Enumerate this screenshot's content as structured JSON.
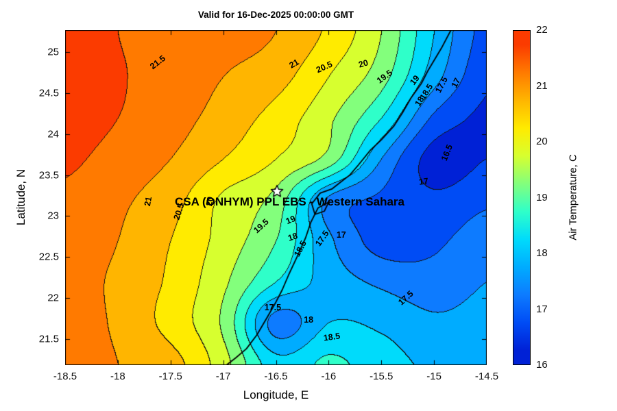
{
  "annotation": {
    "text": "CSA (ONHYM) PPL EBS  - Western Sahara",
    "lon": -16.37,
    "lat": 23.17,
    "star_lon": -16.49,
    "star_lat": 23.3,
    "star_marker": "white-pentagram"
  },
  "axes": {
    "xticks": [
      "-18.5",
      "-18",
      "-17.5",
      "-17",
      "-16.5",
      "-16",
      "-15.5",
      "-15",
      "-14.5"
    ],
    "yticks": [
      "21.5",
      "22",
      "22.5",
      "23",
      "23.5",
      "24",
      "24.5",
      "25"
    ]
  },
  "colorbar": {
    "label": "Air Temperature, C",
    "min": 16,
    "max": 22,
    "ticks": [
      "16",
      "17",
      "18",
      "19",
      "20",
      "21",
      "22"
    ]
  },
  "chart_data": {
    "type": "heatmap",
    "subtype": "filled-contour-map",
    "title": "Valid for 16-Dec-2025 00:00:00 GMT",
    "xlabel": "Longitude, E",
    "ylabel": "Latitude, N",
    "lon_range": [
      -18.5,
      -14.5
    ],
    "lat_range": [
      21.18,
      25.27
    ],
    "contour_levels": [
      16,
      16.5,
      17,
      17.5,
      18,
      18.5,
      19,
      19.5,
      20,
      20.5,
      21,
      21.5,
      22
    ],
    "band_colors": [
      "#0021D6",
      "#004CF5",
      "#0D7BFF",
      "#00ACFF",
      "#00DBFB",
      "#2FFFC9",
      "#83FF7C",
      "#D7FF2F",
      "#FFEB00",
      "#FFB500",
      "#FF7A00",
      "#FB3B00"
    ],
    "grid": {
      "lons": [
        -18.5,
        -18.0,
        -17.5,
        -17.0,
        -16.5,
        -16.0,
        -15.5,
        -15.0,
        -14.5
      ],
      "lats": [
        21.2,
        21.7,
        22.2,
        22.7,
        23.2,
        23.7,
        24.2,
        24.7,
        25.26
      ],
      "temps_c": [
        [
          21.4,
          21.0,
          20.7,
          19.7,
          18.2,
          18.6,
          18.2,
          17.9,
          17.8
        ],
        [
          21.3,
          20.9,
          20.3,
          19.4,
          17.3,
          18.0,
          17.9,
          17.6,
          17.7
        ],
        [
          21.2,
          20.9,
          20.4,
          19.6,
          18.5,
          17.8,
          17.4,
          17.2,
          17.5
        ],
        [
          21.3,
          21.0,
          20.5,
          19.8,
          19.0,
          17.6,
          16.8,
          16.9,
          17.3
        ],
        [
          21.4,
          21.1,
          20.7,
          19.9,
          19.3,
          17.4,
          16.9,
          16.6,
          16.9
        ],
        [
          21.6,
          21.3,
          21.0,
          20.5,
          20.0,
          19.3,
          17.5,
          16.3,
          16.5
        ],
        [
          21.8,
          21.5,
          21.2,
          20.8,
          20.3,
          19.6,
          18.5,
          16.9,
          16.4
        ],
        [
          21.9,
          21.55,
          21.3,
          21.0,
          20.7,
          20.0,
          19.2,
          17.7,
          16.6
        ],
        [
          21.9,
          21.5,
          21.35,
          21.2,
          21.0,
          20.4,
          19.5,
          18.0,
          16.8
        ]
      ]
    },
    "contour_labels": [
      {
        "t": "21.5",
        "lon": -17.62,
        "lat": 24.88,
        "rot": -38
      },
      {
        "t": "21",
        "lon": -16.33,
        "lat": 24.86,
        "rot": -30
      },
      {
        "t": "20.5",
        "lon": -16.04,
        "lat": 24.82,
        "rot": -24
      },
      {
        "t": "20",
        "lon": -15.67,
        "lat": 24.86,
        "rot": -16
      },
      {
        "t": "19.5",
        "lon": -15.47,
        "lat": 24.7,
        "rot": -36
      },
      {
        "t": "19",
        "lon": -15.18,
        "lat": 24.66,
        "rot": -52
      },
      {
        "t": "18.5",
        "lon": -15.07,
        "lat": 24.52,
        "rot": -58
      },
      {
        "t": "18",
        "lon": -15.14,
        "lat": 24.4,
        "rot": -58
      },
      {
        "t": "17.5",
        "lon": -14.93,
        "lat": 24.6,
        "rot": -62
      },
      {
        "t": "17",
        "lon": -14.79,
        "lat": 24.63,
        "rot": -62
      },
      {
        "t": "16.5",
        "lon": -14.88,
        "lat": 23.77,
        "rot": -68
      },
      {
        "t": "17",
        "lon": -15.1,
        "lat": 23.42,
        "rot": -8
      },
      {
        "t": "21",
        "lon": -17.71,
        "lat": 23.18,
        "rot": -80
      },
      {
        "t": "20.5",
        "lon": -17.42,
        "lat": 23.05,
        "rot": -72
      },
      {
        "t": "20",
        "lon": -17.13,
        "lat": 23.18,
        "rot": -80
      },
      {
        "t": "19.5",
        "lon": -16.64,
        "lat": 22.88,
        "rot": -42
      },
      {
        "t": "19",
        "lon": -16.36,
        "lat": 22.95,
        "rot": -22
      },
      {
        "t": "18",
        "lon": -16.34,
        "lat": 22.74,
        "rot": -18
      },
      {
        "t": "18.5",
        "lon": -16.27,
        "lat": 22.6,
        "rot": -62
      },
      {
        "t": "17.5",
        "lon": -16.06,
        "lat": 22.73,
        "rot": -55
      },
      {
        "t": "17",
        "lon": -15.88,
        "lat": 22.77,
        "rot": 0
      },
      {
        "t": "17.5",
        "lon": -15.27,
        "lat": 22.0,
        "rot": -42
      },
      {
        "t": "17.5",
        "lon": -16.53,
        "lat": 21.88,
        "rot": 0
      },
      {
        "t": "18",
        "lon": -16.19,
        "lat": 21.73,
        "rot": 0
      },
      {
        "t": "18.5",
        "lon": -15.97,
        "lat": 21.52,
        "rot": -8
      }
    ],
    "coastline": [
      [
        -14.84,
        25.27
      ],
      [
        -14.93,
        25.05
      ],
      [
        -15.06,
        24.77
      ],
      [
        -15.12,
        24.62
      ],
      [
        -15.22,
        24.44
      ],
      [
        -15.3,
        24.26
      ],
      [
        -15.38,
        24.1
      ],
      [
        -15.5,
        23.93
      ],
      [
        -15.6,
        23.81
      ],
      [
        -15.72,
        23.62
      ],
      [
        -15.8,
        23.5
      ],
      [
        -15.9,
        23.4
      ],
      [
        -15.97,
        23.33
      ],
      [
        -16.08,
        23.28
      ],
      [
        -16.16,
        23.15
      ],
      [
        -16.13,
        23.02
      ],
      [
        -16.04,
        23.06
      ],
      [
        -16.0,
        23.17
      ],
      [
        -16.1,
        23.1
      ],
      [
        -16.17,
        22.92
      ],
      [
        -16.22,
        22.73
      ],
      [
        -16.3,
        22.5
      ],
      [
        -16.38,
        22.28
      ],
      [
        -16.44,
        22.1
      ],
      [
        -16.5,
        21.95
      ],
      [
        -16.58,
        21.77
      ],
      [
        -16.68,
        21.55
      ],
      [
        -16.78,
        21.38
      ],
      [
        -16.88,
        21.27
      ],
      [
        -16.97,
        21.18
      ]
    ]
  }
}
